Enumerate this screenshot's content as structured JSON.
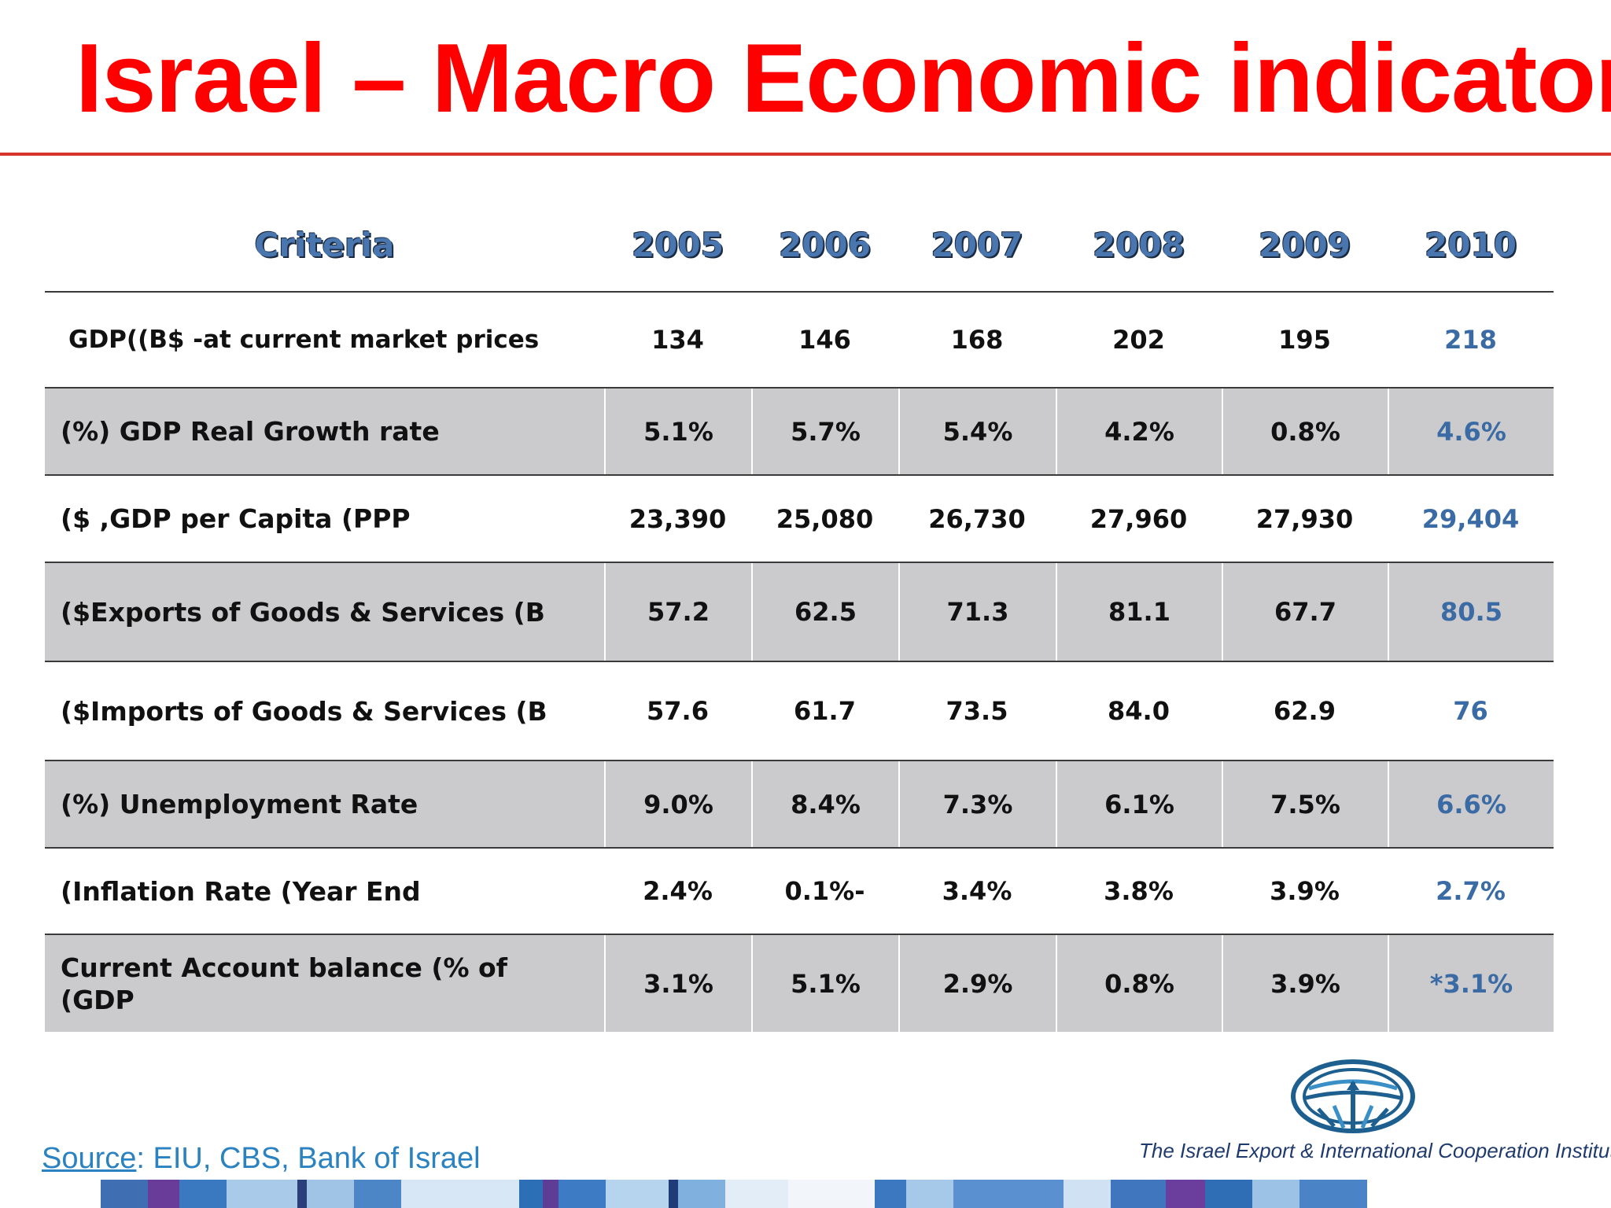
{
  "slide": {
    "title": "Israel – Macro Economic indicators",
    "accent_color": "#ff0000"
  },
  "table": {
    "headers": [
      "Criteria",
      "2005",
      "2006",
      "2007",
      "2008",
      "2009",
      "2010"
    ],
    "rows": [
      {
        "label": "GDP((B$ -at current market prices",
        "values": [
          "134",
          "146",
          "168",
          "202",
          "195",
          "218"
        ]
      },
      {
        "label": "(%) GDP Real Growth rate",
        "values": [
          "5.1%",
          "5.7%",
          "5.4%",
          "4.2%",
          "0.8%",
          "4.6%"
        ]
      },
      {
        "label": "($ ,GDP per Capita (PPP",
        "values": [
          "23,390",
          "25,080",
          "26,730",
          "27,960",
          "27,930",
          "29,404"
        ]
      },
      {
        "label": "($Exports of Goods & Services (B",
        "values": [
          "57.2",
          "62.5",
          "71.3",
          "81.1",
          "67.7",
          "80.5"
        ]
      },
      {
        "label": "($Imports of Goods & Services (B",
        "values": [
          "57.6",
          "61.7",
          "73.5",
          "84.0",
          "62.9",
          "76"
        ]
      },
      {
        "label": "(%) Unemployment Rate",
        "values": [
          "9.0%",
          "8.4%",
          "7.3%",
          "6.1%",
          "7.5%",
          "6.6%"
        ]
      },
      {
        "label": "(Inflation Rate (Year End",
        "values": [
          "2.4%",
          "0.1%-",
          "3.4%",
          "3.8%",
          "3.9%",
          "2.7%"
        ]
      },
      {
        "label": "Current Account balance (% of (GDP",
        "values": [
          "3.1%",
          "5.1%",
          "2.9%",
          "0.8%",
          "3.9%",
          "*3.1%"
        ]
      }
    ]
  },
  "footer": {
    "source_label": "Source",
    "source_text": ": EIU, CBS, Bank of Israel",
    "org_name": "The Israel Export & International Cooperation Institute",
    "logo_icon": "globe-logo-icon"
  }
}
